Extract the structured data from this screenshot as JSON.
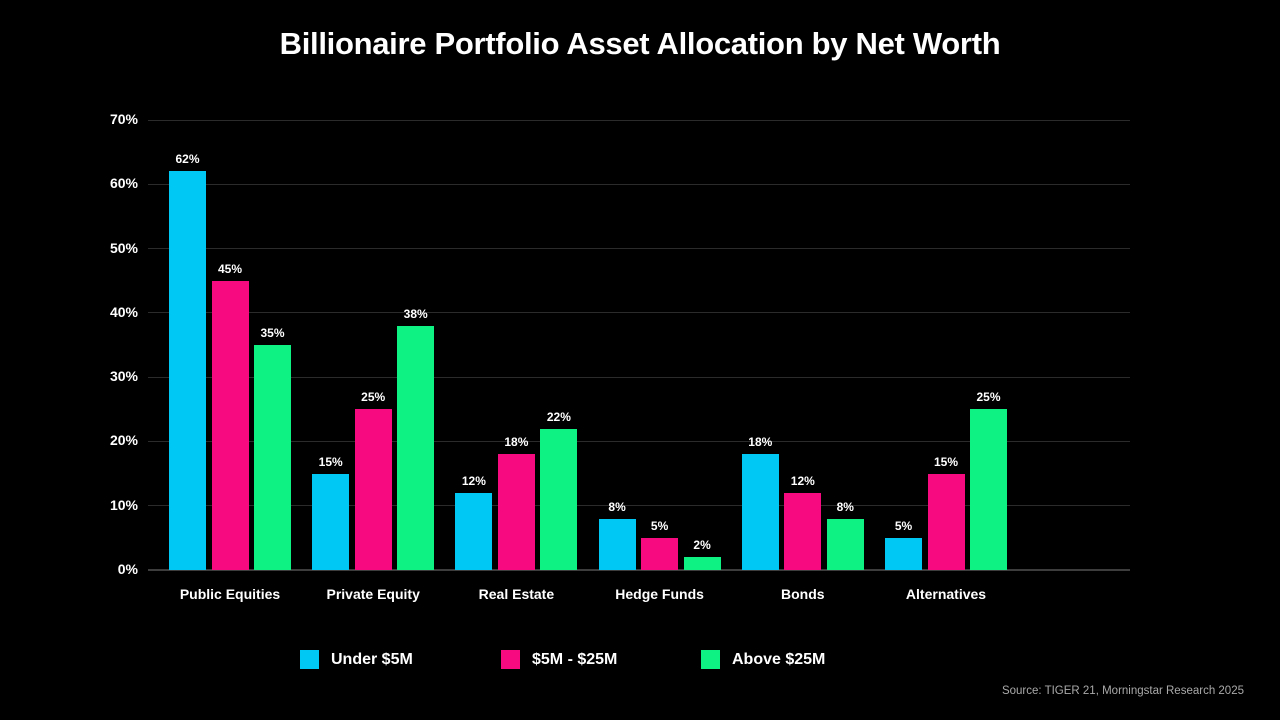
{
  "title": "Billionaire Portfolio Asset Allocation by Net Worth",
  "source": "Source: TIGER 21, Morningstar Research 2025",
  "chart_data": {
    "type": "bar",
    "title": "Billionaire Portfolio Asset Allocation by Net Worth",
    "categories": [
      "Public Equities",
      "Private Equity",
      "Real Estate",
      "Hedge Funds",
      "Bonds",
      "Alternatives"
    ],
    "series": [
      {
        "name": "Under $5M",
        "color": "#00c8f5",
        "values": [
          62,
          15,
          12,
          8,
          18,
          5
        ]
      },
      {
        "name": "$5M - $25M",
        "color": "#f70a7f",
        "values": [
          45,
          25,
          18,
          5,
          12,
          15
        ]
      },
      {
        "name": "Above $25M",
        "color": "#0df282",
        "values": [
          35,
          38,
          22,
          2,
          8,
          25
        ]
      }
    ],
    "value_label_suffix": "%",
    "xlabel": "",
    "ylabel": "",
    "ylim": [
      0,
      70
    ],
    "y_tick_step": 10,
    "y_tick_labels": [
      "0%",
      "10%",
      "20%",
      "30%",
      "40%",
      "50%",
      "60%",
      "70%"
    ],
    "grid": true,
    "legend_position": "bottom",
    "background": "#000000",
    "text_color": "#ffffff",
    "gridline_color": "#2b2b2b",
    "source": "Source: TIGER 21, Morningstar Research 2025"
  }
}
